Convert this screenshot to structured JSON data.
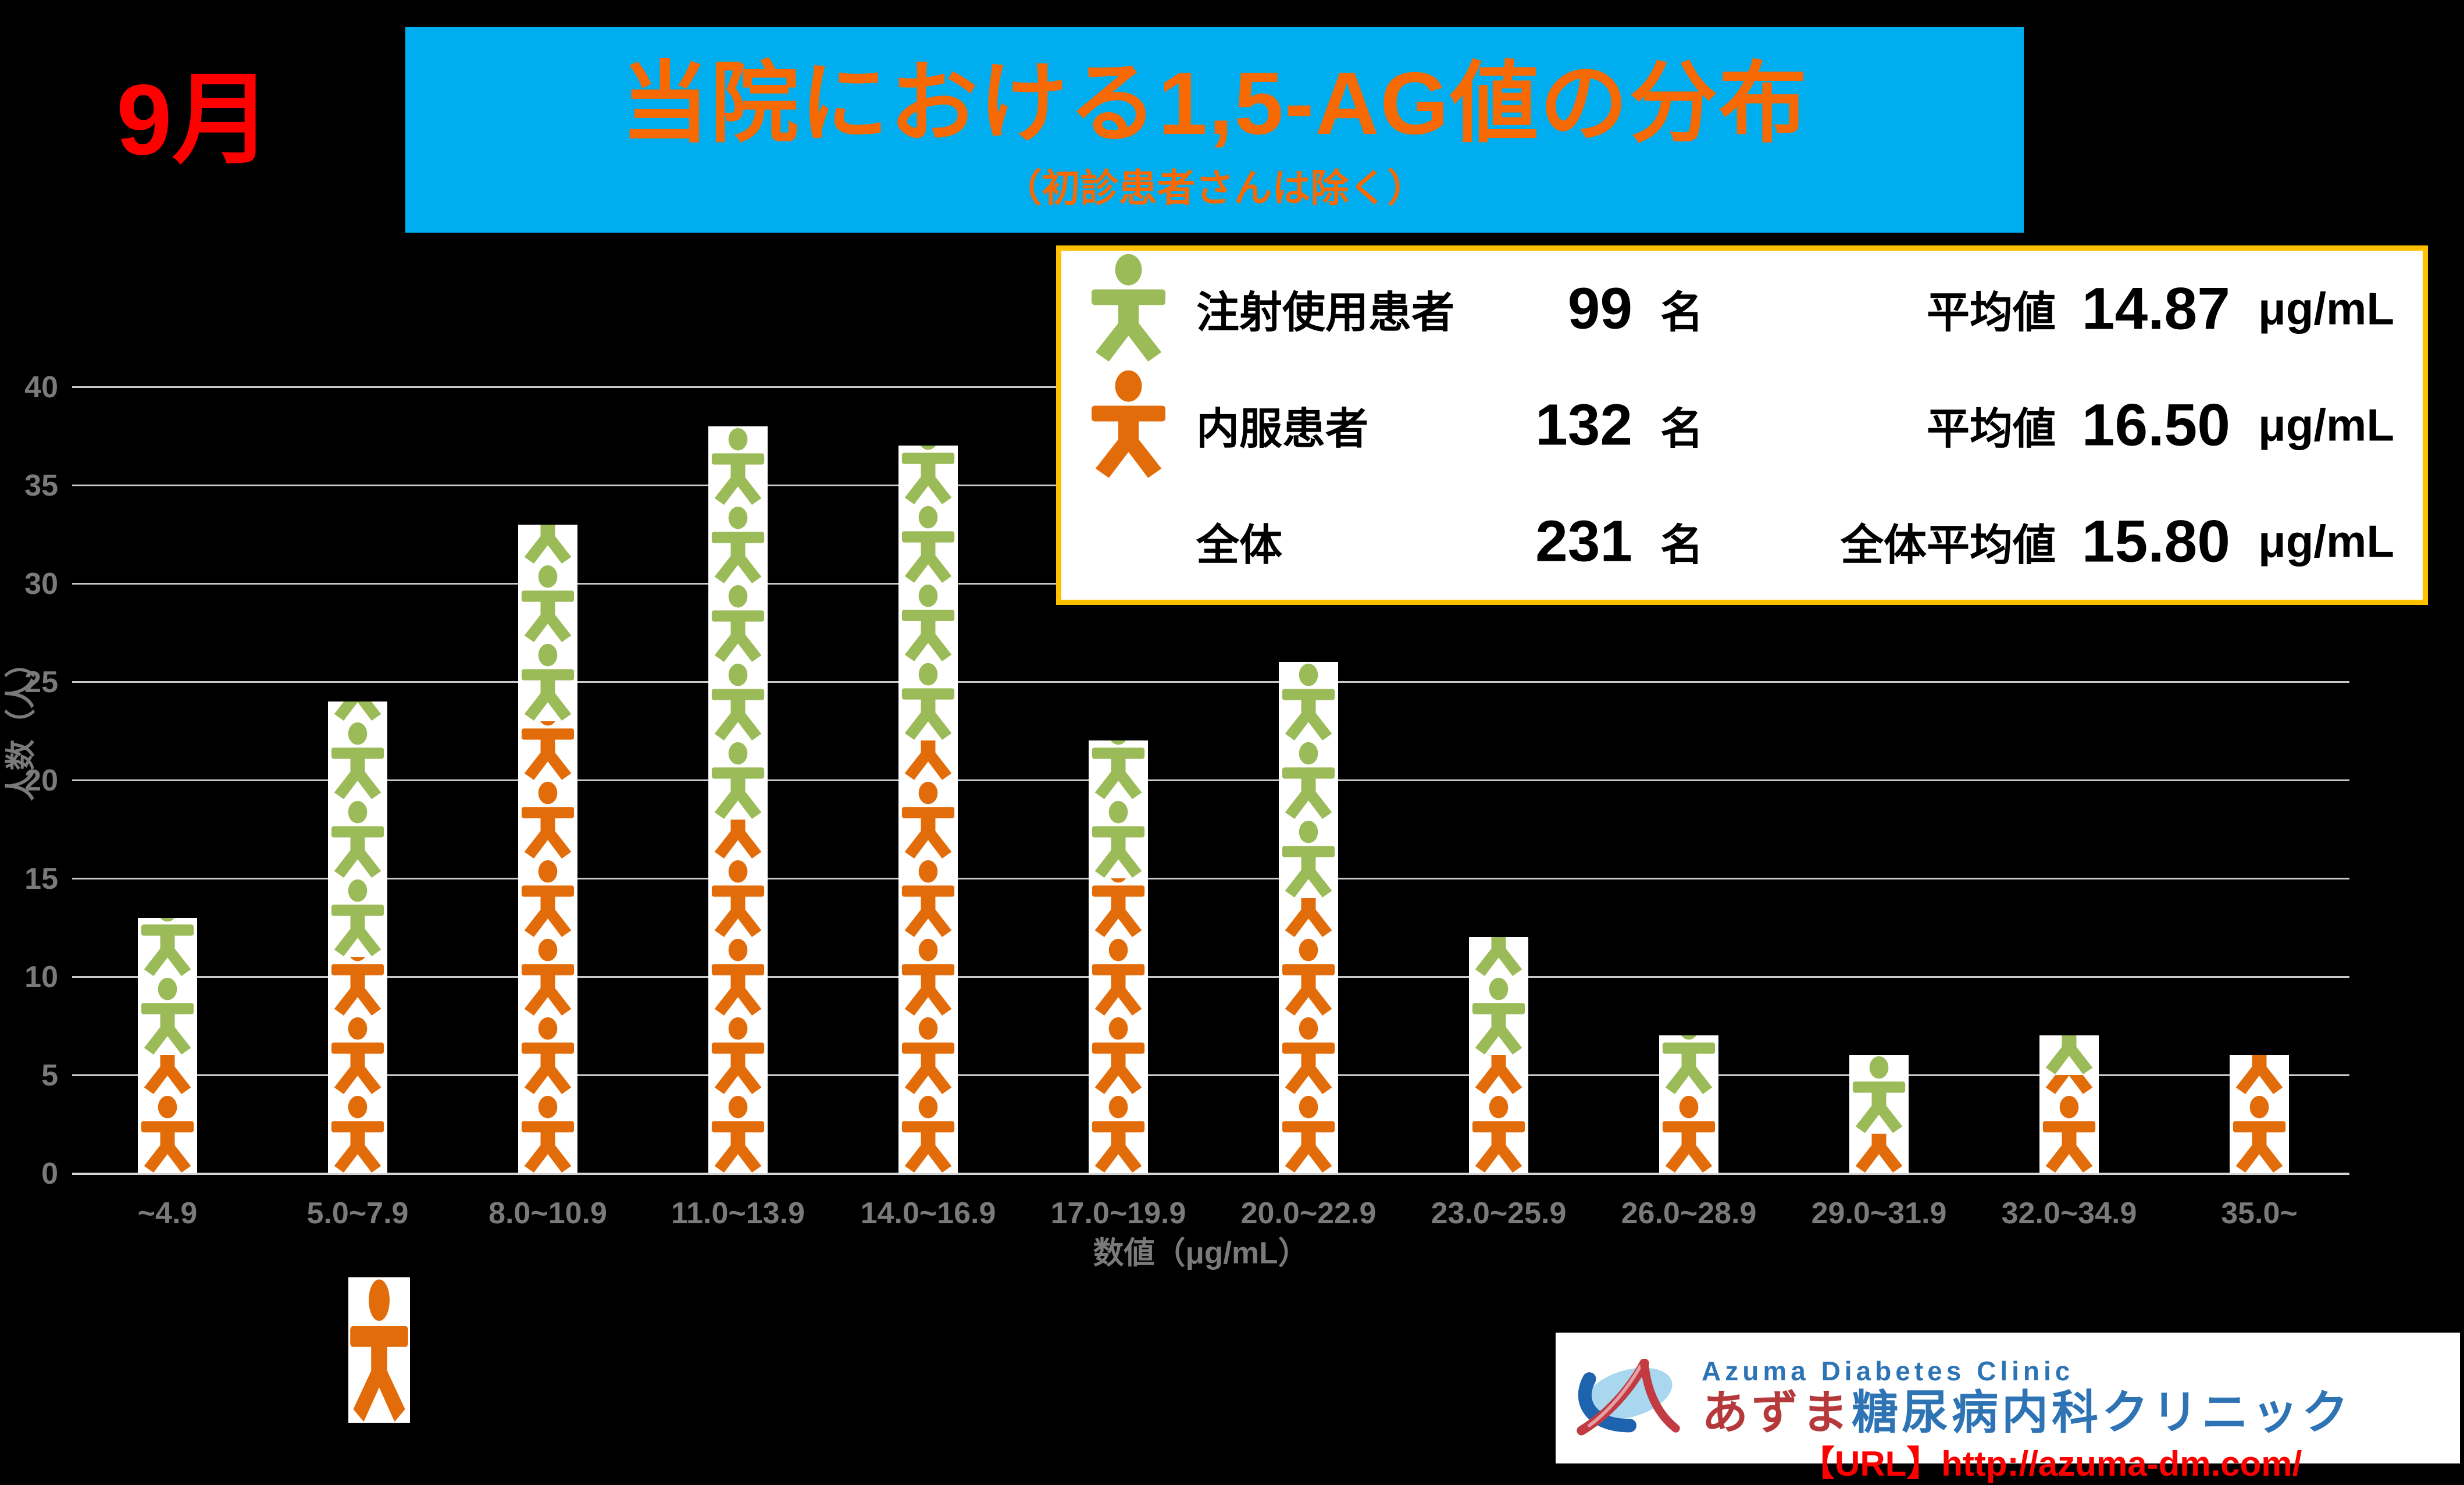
{
  "page": {
    "month_label": "9月",
    "title": "当院における1,5-AG値の分布",
    "subtitle": "（初診患者さんは除く）",
    "background_color": "#000000",
    "banner_color": "#00AEEF",
    "banner_text_color": "#F76902",
    "month_color": "#FF0000"
  },
  "legend": {
    "border_color": "#FFC000",
    "rows": [
      {
        "icon": "person-green",
        "label": "注射使用患者",
        "count": "99",
        "count_unit": "名",
        "avg_label": "平均値",
        "avg_value": "14.87",
        "avg_unit": "μg/mL"
      },
      {
        "icon": "person-orange",
        "label": "内服患者",
        "count": "132",
        "count_unit": "名",
        "avg_label": "平均値",
        "avg_value": "16.50",
        "avg_unit": "μg/mL"
      },
      {
        "icon": "none",
        "label": "全体",
        "count": "231",
        "count_unit": "名",
        "avg_label": "全体平均値",
        "avg_value": "15.80",
        "avg_unit": "μg/mL"
      }
    ]
  },
  "chart_data": {
    "type": "bar",
    "stacked": true,
    "pictogram": true,
    "title": "当院における1,5-AG値の分布",
    "categories": [
      "~4.9",
      "5.0~7.9",
      "8.0~10.9",
      "11.0~13.9",
      "14.0~16.9",
      "17.0~19.9",
      "20.0~22.9",
      "23.0~25.9",
      "26.0~28.9",
      "29.0~31.9",
      "32.0~34.9",
      "35.0~"
    ],
    "series": [
      {
        "name": "内服患者",
        "color": "#E36C0A",
        "stack_position": "bottom",
        "values": [
          6,
          11,
          23,
          18,
          22,
          15,
          14,
          6,
          4,
          2,
          5,
          6
        ]
      },
      {
        "name": "注射使用患者",
        "color": "#9BBB59",
        "stack_position": "top",
        "values": [
          7,
          13,
          10,
          20,
          15,
          7,
          12,
          6,
          3,
          4,
          2,
          0
        ]
      }
    ],
    "totals": [
      13,
      24,
      33,
      38,
      37,
      22,
      26,
      12,
      7,
      6,
      7,
      6
    ],
    "xlabel": "数値（μg/mL）",
    "ylabel": "人数（人）",
    "ylim": [
      0,
      40
    ],
    "ytick_step": 5,
    "y_ticks": [
      0,
      5,
      10,
      15,
      20,
      25,
      30,
      35,
      40
    ],
    "grid": true,
    "grid_color": "#C9C9C9",
    "tick_label_color": "#7A7A7A",
    "legend_position": "top-right",
    "below_axis_marker": {
      "category": "5.0~7.9",
      "series": "内服患者",
      "color": "#E36C0A"
    }
  },
  "logo": {
    "en_name": "Azuma Diabetes Clinic",
    "ja_name_red": "あずま",
    "ja_name_blue": "糖尿病内科クリニック",
    "url_label": "【URL】http://azuma-dm.com/"
  }
}
